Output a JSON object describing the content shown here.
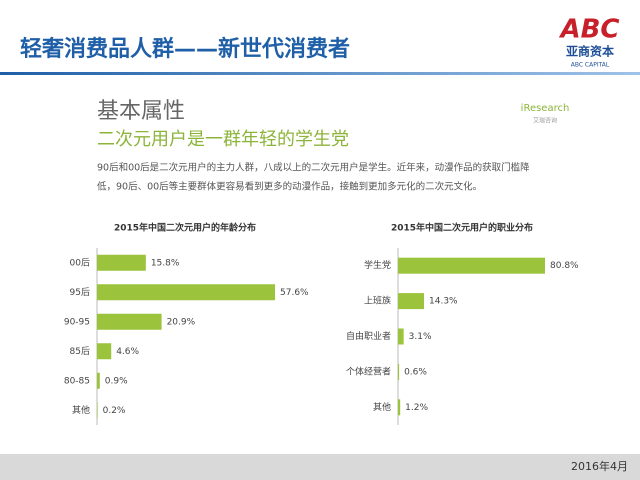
{
  "header": {
    "title": "轻奢消费品人群——新世代消费者",
    "logo": "ABC",
    "logo_cn": "亚商资本",
    "logo_en": "ABC CAPITAL"
  },
  "section": {
    "heading": "基本属性",
    "subheading": "二次元用户是一群年轻的学生党",
    "source": "iResearch",
    "source_cn": "艾瑞咨询",
    "paragraph": [
      "90后和00后是二次元用户的主力人群，八成以上的二次元用户是学生。近年来，动漫作品的获取门槛降",
      "低，90后、00后等主要群体更容易看到更多的动漫作品，接触到更加多元化的二次元文化。"
    ]
  },
  "footer": {
    "date": "2016年4月"
  },
  "chart_data": [
    {
      "type": "bar",
      "orientation": "horizontal",
      "title": "2015年中国二次元用户的年龄分布",
      "color": "#9bc33c",
      "categories": [
        "00后",
        "95后",
        "90-95",
        "85后",
        "80-85",
        "其他"
      ],
      "values": [
        15.8,
        57.6,
        20.9,
        4.6,
        0.9,
        0.2
      ],
      "value_labels": [
        "15.8%",
        "57.6%",
        "20.9%",
        "4.6%",
        "0.9%",
        "0.2%"
      ]
    },
    {
      "type": "bar",
      "orientation": "horizontal",
      "title": "2015年中国二次元用户的职业分布",
      "color": "#9bc33c",
      "categories": [
        "学生党",
        "上班族",
        "自由职业者",
        "个体经营者",
        "其他"
      ],
      "values": [
        80.8,
        14.3,
        3.1,
        0.6,
        1.2
      ],
      "value_labels": [
        "80.8%",
        "14.3%",
        "3.1%",
        "0.6%",
        "1.2%"
      ]
    }
  ]
}
